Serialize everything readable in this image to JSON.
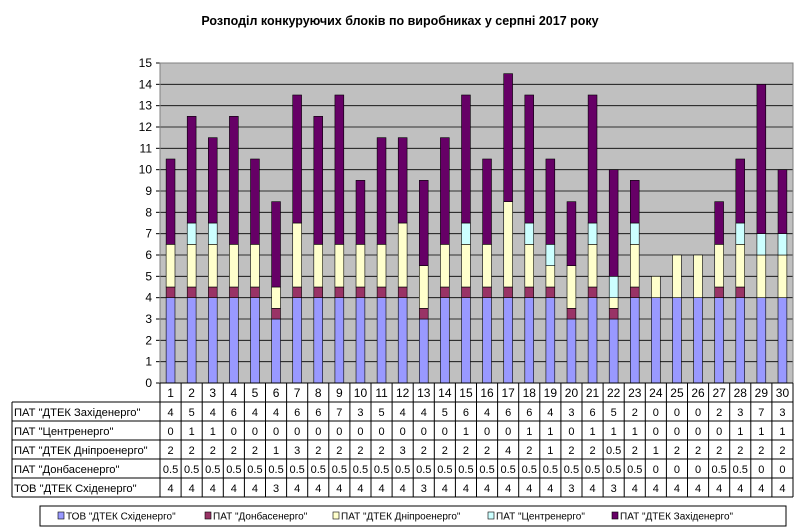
{
  "chart_data": {
    "type": "bar",
    "stacked": true,
    "title": "Розподіл конкуруючих  блоків по виробниках  у серпні 2017 року",
    "categories": [
      "1",
      "2",
      "3",
      "4",
      "5",
      "6",
      "7",
      "8",
      "9",
      "10",
      "11",
      "12",
      "13",
      "14",
      "15",
      "16",
      "17",
      "18",
      "19",
      "20",
      "21",
      "22",
      "23",
      "24",
      "25",
      "26",
      "27",
      "28",
      "29",
      "30"
    ],
    "ylim": [
      0,
      15
    ],
    "yticks": [
      "0",
      "1",
      "2",
      "3",
      "4",
      "5",
      "6",
      "7",
      "8",
      "9",
      "10",
      "11",
      "12",
      "13",
      "14",
      "15"
    ],
    "grid": true,
    "legend_position": "bottom",
    "series": [
      {
        "name": "ТОВ \"ДТЕК Східенерго\"",
        "color": "#9999ff",
        "values": [
          4,
          4,
          4,
          4,
          4,
          3,
          4,
          4,
          4,
          4,
          4,
          4,
          3,
          4,
          4,
          4,
          4,
          4,
          4,
          3,
          4,
          3,
          4,
          4,
          4,
          4,
          4,
          4,
          4,
          4
        ]
      },
      {
        "name": "ПАТ \"Донбасенерго\"",
        "color": "#993366",
        "values": [
          0.5,
          0.5,
          0.5,
          0.5,
          0.5,
          0.5,
          0.5,
          0.5,
          0.5,
          0.5,
          0.5,
          0.5,
          0.5,
          0.5,
          0.5,
          0.5,
          0.5,
          0.5,
          0.5,
          0.5,
          0.5,
          0.5,
          0.5,
          0,
          0,
          0,
          0.5,
          0.5,
          0,
          0
        ]
      },
      {
        "name": "ПАТ \"ДТЕК Дніпроенерго\"",
        "color": "#ffffcc",
        "values": [
          2,
          2,
          2,
          2,
          2,
          1,
          3,
          2,
          2,
          2,
          2,
          3,
          2,
          2,
          2,
          2,
          4,
          2,
          1,
          2,
          2,
          0.5,
          2,
          1,
          2,
          2,
          2,
          2,
          2,
          2
        ]
      },
      {
        "name": "ПАТ \"Центренерго\"",
        "color": "#ccffff",
        "values": [
          0,
          1,
          1,
          0,
          0,
          0,
          0,
          0,
          0,
          0,
          0,
          0,
          0,
          0,
          1,
          0,
          0,
          1,
          1,
          0,
          1,
          1,
          1,
          0,
          0,
          0,
          0,
          1,
          1,
          1
        ]
      },
      {
        "name": "ПАТ \"ДТЕК Західенерго\"",
        "color": "#660066",
        "values": [
          4,
          5,
          4,
          6,
          4,
          4,
          6,
          6,
          7,
          3,
          5,
          4,
          4,
          5,
          6,
          4,
          6,
          6,
          4,
          3,
          6,
          5,
          2,
          0,
          0,
          0,
          2,
          3,
          7,
          3
        ]
      }
    ],
    "table_rows": [
      {
        "label": "ПАТ \"ДТЕК Західенерго\"",
        "values": [
          "4",
          "5",
          "4",
          "6",
          "4",
          "4",
          "6",
          "6",
          "7",
          "3",
          "5",
          "4",
          "4",
          "5",
          "6",
          "4",
          "6",
          "6",
          "4",
          "3",
          "6",
          "5",
          "2",
          "0",
          "0",
          "0",
          "2",
          "3",
          "7",
          "3"
        ]
      },
      {
        "label": "ПАТ \"Центренерго\"",
        "values": [
          "0",
          "1",
          "1",
          "0",
          "0",
          "0",
          "0",
          "0",
          "0",
          "0",
          "0",
          "0",
          "0",
          "0",
          "1",
          "0",
          "0",
          "1",
          "1",
          "0",
          "1",
          "1",
          "1",
          "0",
          "0",
          "0",
          "0",
          "1",
          "1",
          "1"
        ]
      },
      {
        "label": "ПАТ \"ДТЕК Дніпроенерго\"",
        "values": [
          "2",
          "2",
          "2",
          "2",
          "2",
          "1",
          "3",
          "2",
          "2",
          "2",
          "2",
          "3",
          "2",
          "2",
          "2",
          "2",
          "4",
          "2",
          "1",
          "2",
          "2",
          "0.5",
          "2",
          "1",
          "2",
          "2",
          "2",
          "2",
          "2",
          "2"
        ]
      },
      {
        "label": "ПАТ \"Донбасенерго\"",
        "values": [
          "0.5",
          "0.5",
          "0.5",
          "0.5",
          "0.5",
          "0.5",
          "0.5",
          "0.5",
          "0.5",
          "0.5",
          "0.5",
          "0.5",
          "0.5",
          "0.5",
          "0.5",
          "0.5",
          "0.5",
          "0.5",
          "0.5",
          "0.5",
          "0.5",
          "0.5",
          "0.5",
          "0",
          "0",
          "0",
          "0.5",
          "0.5",
          "0",
          "0"
        ]
      },
      {
        "label": "ТОВ \"ДТЕК Східенерго\"",
        "values": [
          "4",
          "4",
          "4",
          "4",
          "4",
          "3",
          "4",
          "4",
          "4",
          "4",
          "4",
          "4",
          "3",
          "4",
          "4",
          "4",
          "4",
          "4",
          "4",
          "3",
          "4",
          "3",
          "4",
          "4",
          "4",
          "4",
          "4",
          "4",
          "4",
          "4"
        ]
      }
    ],
    "legend": [
      "ТОВ \"ДТЕК Східенерго\"",
      "ПАТ \"Донбасенерго\"",
      "ПАТ \"ДТЕК Дніпроенерго\"",
      "ПАТ \"Центренерго\"",
      "ПАТ \"ДТЕК Західенерго\""
    ]
  }
}
